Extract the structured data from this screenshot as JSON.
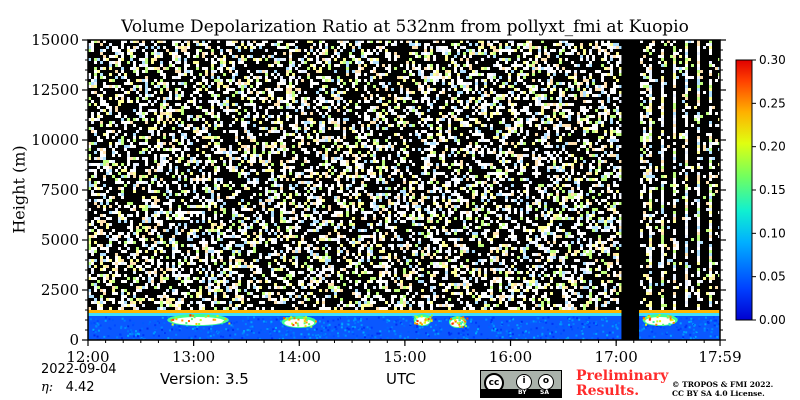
{
  "chart_data": {
    "type": "heatmap",
    "title": "Volume Depolarization Ratio at 532nm from pollyxt_fmi at Kuopio",
    "xlabel": "UTC",
    "ylabel": "Height (m)",
    "x_ticks": [
      "12:00",
      "13:00",
      "14:00",
      "15:00",
      "16:00",
      "17:00",
      "17:59"
    ],
    "x_range_hours": [
      12.0,
      17.983
    ],
    "y_ticks": [
      0,
      2500,
      5000,
      7500,
      10000,
      12500,
      15000
    ],
    "y_tick_labels": [
      "0",
      "2500",
      "5000",
      "7500",
      "10000",
      "12500",
      "15000"
    ],
    "ylim": [
      0,
      15000
    ],
    "colorbar": {
      "range": [
        0.0,
        0.3
      ],
      "ticks": [
        0.0,
        0.05,
        0.1,
        0.15,
        0.2,
        0.25,
        0.3
      ],
      "tick_labels": [
        "0.00",
        "0.05",
        "0.10",
        "0.15",
        "0.20",
        "0.25",
        "0.30"
      ]
    },
    "boundary_layer_top_m": 1400,
    "no_data_interval": [
      "17:03",
      "17:13"
    ],
    "cloud_features": [
      {
        "start": "12:45",
        "end": "13:20",
        "height_m": 1000
      },
      {
        "start": "13:50",
        "end": "14:10",
        "height_m": 900
      },
      {
        "start": "15:05",
        "end": "15:15",
        "height_m": 1000
      },
      {
        "start": "15:25",
        "end": "15:35",
        "height_m": 900
      },
      {
        "start": "17:15",
        "end": "17:35",
        "height_m": 1000
      }
    ]
  },
  "footer": {
    "date": "2022-09-04",
    "eta_label": "η:",
    "eta_value": "4.42",
    "version": "Version: 3.5",
    "preliminary": "Preliminary Results.",
    "copyright_line1": "© TROPOS & FMI 2022.",
    "copyright_line2": "CC BY SA 4.0 License.",
    "license_badge": "cc-by-sa-icon",
    "license_by": "BY",
    "license_sa": "SA"
  }
}
